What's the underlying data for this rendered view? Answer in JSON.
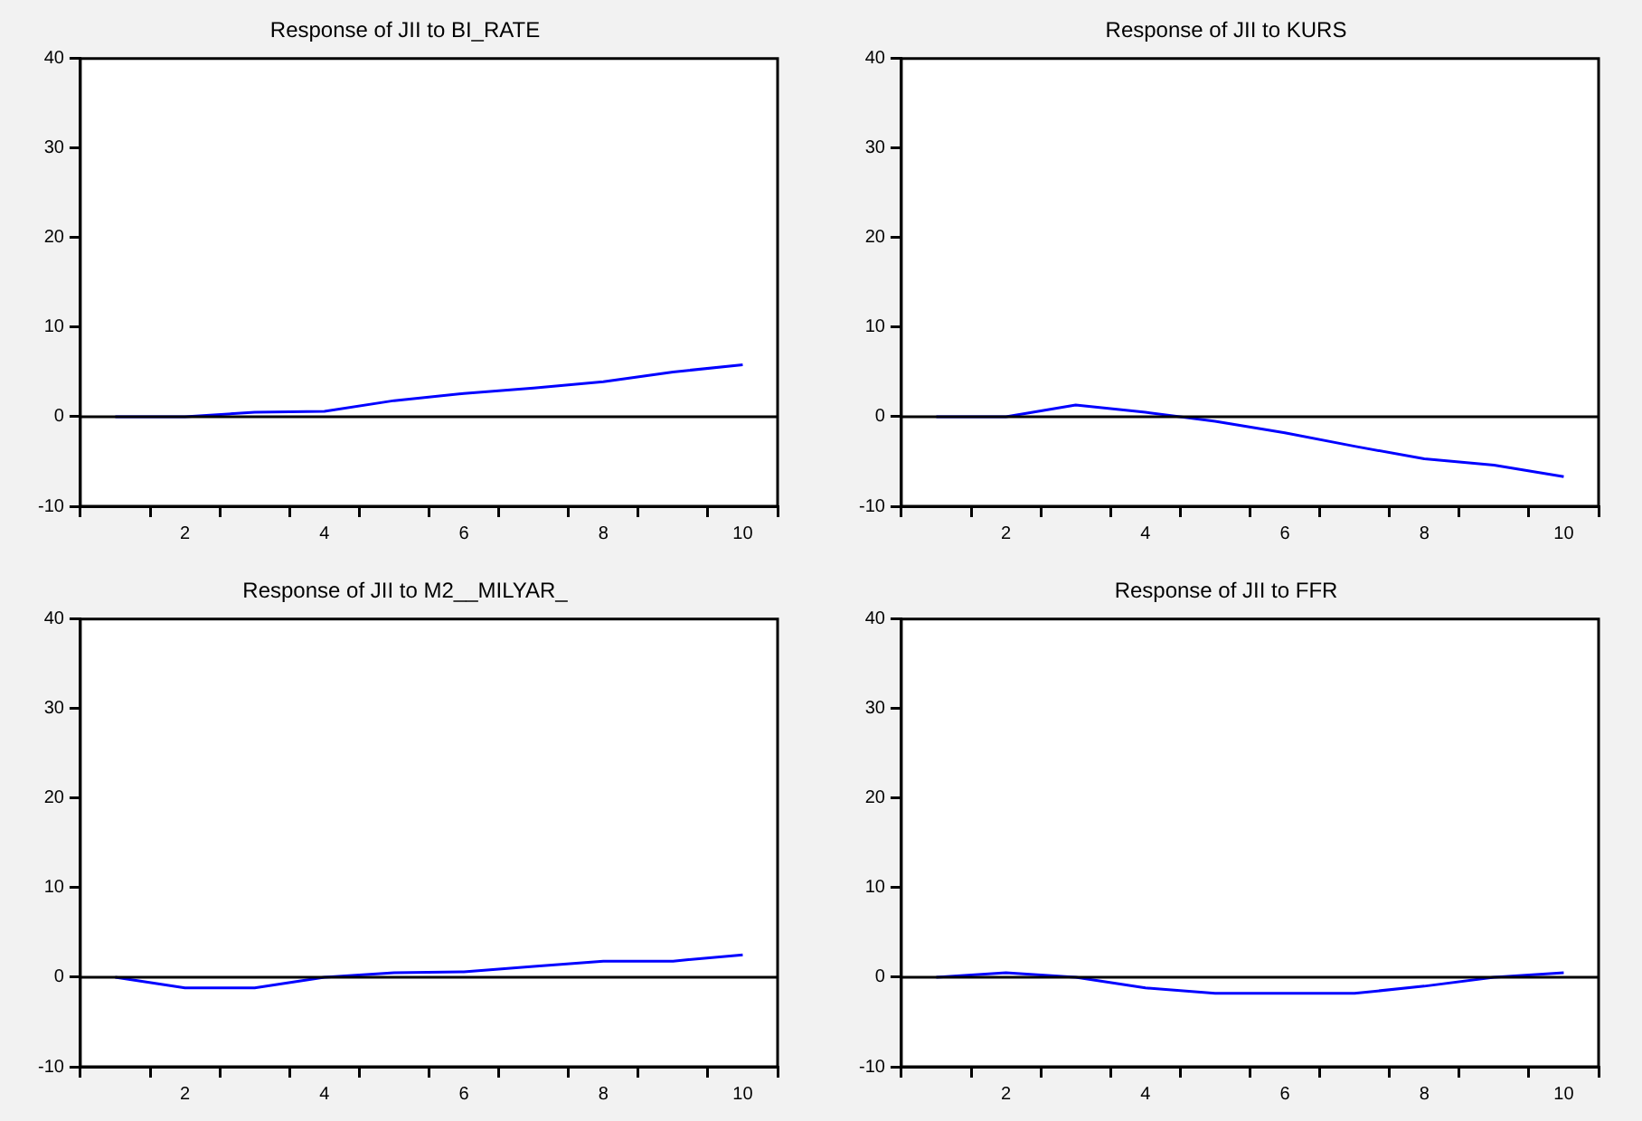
{
  "chart_data": [
    {
      "type": "line",
      "title": "Response of JII to BI_RATE",
      "categories": [
        null,
        "2",
        null,
        "4",
        null,
        "6",
        null,
        "8",
        null,
        "10"
      ],
      "series": [
        {
          "color": "#0000ff",
          "values": [
            0,
            0,
            0.5,
            0.6,
            1.8,
            2.6,
            3.2,
            3.9,
            5.0,
            5.8
          ]
        }
      ],
      "ylim": [
        -10,
        40
      ],
      "yticks": [
        -10,
        0,
        10,
        20,
        30,
        40
      ],
      "ref_lines": [
        {
          "axis": "y",
          "value": 0,
          "color": "#000000"
        }
      ],
      "grid": false,
      "legend": false,
      "marker": "none"
    },
    {
      "type": "line",
      "title": "Response of JII to KURS",
      "categories": [
        null,
        "2",
        null,
        "4",
        null,
        "6",
        null,
        "8",
        null,
        "10"
      ],
      "series": [
        {
          "color": "#0000ff",
          "values": [
            0,
            0,
            1.3,
            0.5,
            -0.5,
            -1.8,
            -3.3,
            -4.7,
            -5.4,
            -6.7
          ]
        }
      ],
      "ylim": [
        -10,
        40
      ],
      "yticks": [
        -10,
        0,
        10,
        20,
        30,
        40
      ],
      "ref_lines": [
        {
          "axis": "y",
          "value": 0,
          "color": "#000000"
        }
      ],
      "grid": false,
      "legend": false,
      "marker": "none"
    },
    {
      "type": "line",
      "title": "Response of JII to M2__MILYAR_",
      "categories": [
        null,
        "2",
        null,
        "4",
        null,
        "6",
        null,
        "8",
        null,
        "10"
      ],
      "series": [
        {
          "color": "#0000ff",
          "values": [
            0,
            -1.2,
            -1.2,
            0,
            0.5,
            0.6,
            1.2,
            1.8,
            1.8,
            2.5
          ]
        }
      ],
      "ylim": [
        -10,
        40
      ],
      "yticks": [
        -10,
        0,
        10,
        20,
        30,
        40
      ],
      "ref_lines": [
        {
          "axis": "y",
          "value": 0,
          "color": "#000000"
        }
      ],
      "grid": false,
      "legend": false,
      "marker": "none"
    },
    {
      "type": "line",
      "title": "Response of JII to FFR",
      "categories": [
        null,
        "2",
        null,
        "4",
        null,
        "6",
        null,
        "8",
        null,
        "10"
      ],
      "series": [
        {
          "color": "#0000ff",
          "values": [
            0,
            0.5,
            0,
            -1.2,
            -1.8,
            -1.8,
            -1.8,
            -1,
            0,
            0.5
          ]
        }
      ],
      "ylim": [
        -10,
        40
      ],
      "yticks": [
        -10,
        0,
        10,
        20,
        30,
        40
      ],
      "ref_lines": [
        {
          "axis": "y",
          "value": 0,
          "color": "#000000"
        }
      ],
      "grid": false,
      "legend": false,
      "marker": "none"
    }
  ]
}
